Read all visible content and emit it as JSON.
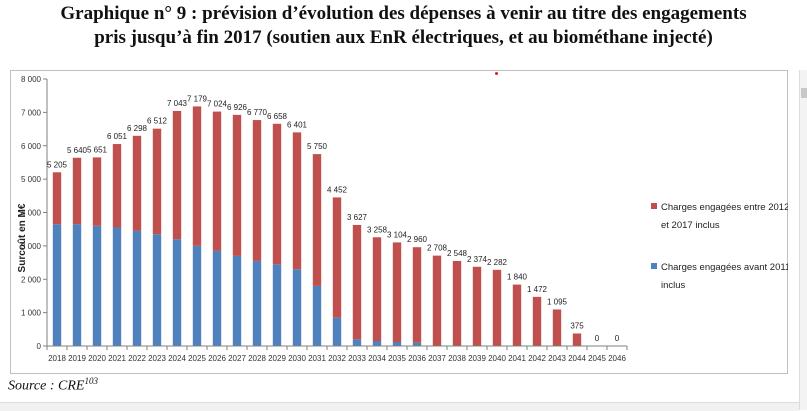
{
  "title": {
    "line1": "Graphique n° 9 : prévision d’évolution des dépenses à venir au titre des engagements",
    "line2": "pris jusqu’à fin 2017 (soutien aux EnR électriques, et au biométhane injecté)"
  },
  "source": {
    "label": "Source : CRE",
    "note": "103"
  },
  "colors": {
    "before_2011": "#4f81bd",
    "from_2012_to_2017": "#c0504d",
    "axis": "#808080"
  },
  "chart_data": {
    "type": "bar",
    "stacked": true,
    "ylabel": "Surcoût en M€",
    "xlabel": "",
    "ylim": [
      0,
      8000
    ],
    "yticks": [
      "0",
      "1 000",
      "2 000",
      "3 000",
      "4 000",
      "5 000",
      "6 000",
      "7 000",
      "8 000"
    ],
    "grid": false,
    "legend_position": "right",
    "categories": [
      "2018",
      "2019",
      "2020",
      "2021",
      "2022",
      "2023",
      "2024",
      "2025",
      "2026",
      "2027",
      "2028",
      "2029",
      "2030",
      "2031",
      "2032",
      "2033",
      "2034",
      "2035",
      "2036",
      "2037",
      "2038",
      "2039",
      "2040",
      "2041",
      "2042",
      "2043",
      "2044",
      "2045",
      "2046"
    ],
    "series": [
      {
        "name": "Charges engagées avant 2011 inclus",
        "color": "#4f81bd",
        "values": [
          3650,
          3650,
          3600,
          3550,
          3450,
          3350,
          3200,
          3000,
          2850,
          2700,
          2550,
          2450,
          2300,
          1800,
          850,
          200,
          150,
          120,
          100,
          0,
          0,
          0,
          0,
          0,
          0,
          0,
          0,
          0,
          0
        ]
      },
      {
        "name": "Charges engagées entre 2012 et 2017 inclus",
        "color": "#c0504d",
        "values": [
          1555,
          1990,
          2051,
          2501,
          2848,
          3162,
          3843,
          4179,
          4174,
          4226,
          4220,
          4208,
          4101,
          3950,
          3602,
          3427,
          3108,
          2984,
          2860,
          2708,
          2548,
          2374,
          2282,
          1840,
          1472,
          1095,
          375,
          0,
          0
        ]
      }
    ],
    "totals": [
      5205,
      5640,
      5651,
      6051,
      6298,
      6512,
      7043,
      7179,
      7024,
      6926,
      6770,
      6658,
      6401,
      5750,
      4452,
      3627,
      3258,
      3104,
      2960,
      2708,
      2548,
      2374,
      2282,
      1840,
      1472,
      1095,
      375,
      0,
      0
    ],
    "total_labels": [
      "5 205",
      "5 640",
      "5 651",
      "6 051",
      "6 298",
      "6 512",
      "7 043",
      "7 179",
      "7 024",
      "6 926",
      "6 770",
      "6 658",
      "6 401",
      "5 750",
      "4 452",
      "3 627",
      "3 258",
      "3 104",
      "2 960",
      "2 708",
      "2 548",
      "2 374",
      "2 282",
      "1 840",
      "1 472",
      "1 095",
      "375",
      "0",
      "0"
    ],
    "legend": [
      {
        "lines": [
          "Charges engagées entre 2012",
          "et 2017 inclus"
        ],
        "color": "#c0504d"
      },
      {
        "lines": [
          "Charges engagées avant 2011",
          "inclus"
        ],
        "color": "#4f81bd"
      }
    ]
  }
}
